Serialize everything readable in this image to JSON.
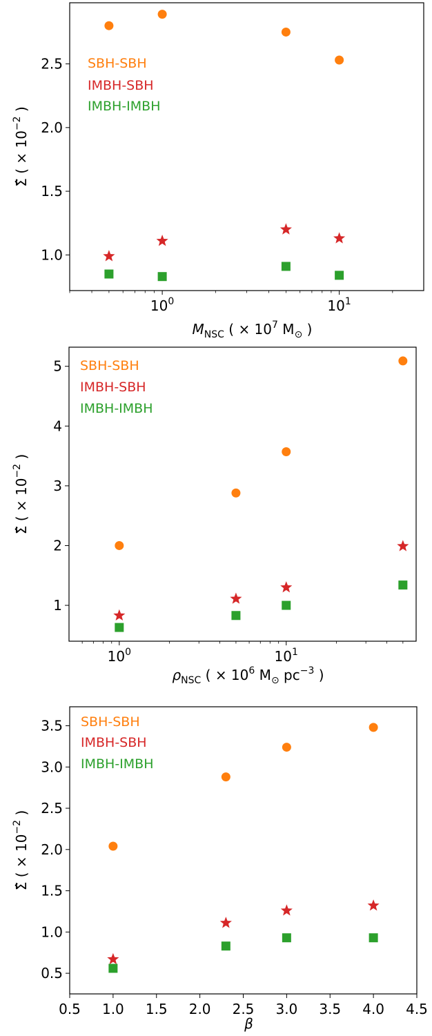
{
  "chart_data": [
    {
      "type": "scatter",
      "xscale": "log",
      "xlim": [
        0.3,
        30
      ],
      "ylim": [
        0.72,
        2.98
      ],
      "xlabel": "M_NSC ( × 10^7 M_⊙ )",
      "ylabel": "Σ̂ ( × 10^−2 )",
      "xticks": [
        {
          "v": 1,
          "base": "10",
          "exp": "0"
        },
        {
          "v": 10,
          "base": "10",
          "exp": "1"
        }
      ],
      "yticks": [
        {
          "v": 1.0,
          "label": "1.0"
        },
        {
          "v": 1.5,
          "label": "1.5"
        },
        {
          "v": 2.0,
          "label": "2.0"
        },
        {
          "v": 2.5,
          "label": "2.5"
        }
      ],
      "legend_position": "upper-left",
      "series": [
        {
          "name": "SBH-SBH",
          "marker": "circle",
          "color": "#ff7f0e",
          "x": [
            0.5,
            1,
            5,
            10
          ],
          "y": [
            2.8,
            2.89,
            2.75,
            2.53
          ]
        },
        {
          "name": "IMBH-SBH",
          "marker": "star",
          "color": "#d62728",
          "x": [
            0.5,
            1,
            5,
            10
          ],
          "y": [
            0.99,
            1.11,
            1.2,
            1.13
          ]
        },
        {
          "name": "IMBH-IMBH",
          "marker": "square",
          "color": "#2ca02c",
          "x": [
            0.5,
            1,
            5,
            10
          ],
          "y": [
            0.85,
            0.83,
            0.91,
            0.84
          ]
        }
      ]
    },
    {
      "type": "scatter",
      "xscale": "log",
      "xlim": [
        0.5,
        60
      ],
      "ylim": [
        0.4,
        5.32
      ],
      "xlabel": "ρ_NSC ( × 10^6 M_⊙ pc^−3 )",
      "ylabel": "Σ̂ ( × 10^−2 )",
      "xticks": [
        {
          "v": 1,
          "base": "10",
          "exp": "0"
        },
        {
          "v": 10,
          "base": "10",
          "exp": "1"
        }
      ],
      "yticks": [
        {
          "v": 1,
          "label": "1"
        },
        {
          "v": 2,
          "label": "2"
        },
        {
          "v": 3,
          "label": "3"
        },
        {
          "v": 4,
          "label": "4"
        },
        {
          "v": 5,
          "label": "5"
        }
      ],
      "legend_position": "upper-left",
      "series": [
        {
          "name": "SBH-SBH",
          "marker": "circle",
          "color": "#ff7f0e",
          "x": [
            1,
            5,
            10,
            50
          ],
          "y": [
            2.0,
            2.88,
            3.57,
            5.09
          ]
        },
        {
          "name": "IMBH-SBH",
          "marker": "star",
          "color": "#d62728",
          "x": [
            1,
            5,
            10,
            50
          ],
          "y": [
            0.83,
            1.11,
            1.3,
            1.99
          ]
        },
        {
          "name": "IMBH-IMBH",
          "marker": "square",
          "color": "#2ca02c",
          "x": [
            1,
            5,
            10,
            50
          ],
          "y": [
            0.63,
            0.83,
            1.0,
            1.34
          ]
        }
      ]
    },
    {
      "type": "scatter",
      "xscale": "linear",
      "xlim": [
        0.5,
        4.5
      ],
      "ylim": [
        0.25,
        3.73
      ],
      "xlabel": "β",
      "ylabel": "Σ̂ ( × 10^−2 )",
      "xticks": [
        {
          "v": 0.5,
          "label": "0.5"
        },
        {
          "v": 1.0,
          "label": "1.0"
        },
        {
          "v": 1.5,
          "label": "1.5"
        },
        {
          "v": 2.0,
          "label": "2.0"
        },
        {
          "v": 2.5,
          "label": "2.5"
        },
        {
          "v": 3.0,
          "label": "3.0"
        },
        {
          "v": 3.5,
          "label": "3.5"
        },
        {
          "v": 4.0,
          "label": "4.0"
        },
        {
          "v": 4.5,
          "label": "4.5"
        }
      ],
      "yticks": [
        {
          "v": 0.5,
          "label": "0.5"
        },
        {
          "v": 1.0,
          "label": "1.0"
        },
        {
          "v": 1.5,
          "label": "1.5"
        },
        {
          "v": 2.0,
          "label": "2.0"
        },
        {
          "v": 2.5,
          "label": "2.5"
        },
        {
          "v": 3.0,
          "label": "3.0"
        },
        {
          "v": 3.5,
          "label": "3.5"
        }
      ],
      "legend_position": "upper-left",
      "series": [
        {
          "name": "SBH-SBH",
          "marker": "circle",
          "color": "#ff7f0e",
          "x": [
            1.0,
            2.3,
            3.0,
            4.0
          ],
          "y": [
            2.04,
            2.88,
            3.24,
            3.48
          ]
        },
        {
          "name": "IMBH-SBH",
          "marker": "star",
          "color": "#d62728",
          "x": [
            1.0,
            2.3,
            3.0,
            4.0
          ],
          "y": [
            0.67,
            1.11,
            1.26,
            1.32
          ]
        },
        {
          "name": "IMBH-IMBH",
          "marker": "square",
          "color": "#2ca02c",
          "x": [
            1.0,
            2.3,
            3.0,
            4.0
          ],
          "y": [
            0.56,
            0.83,
            0.93,
            0.93
          ]
        }
      ]
    }
  ],
  "axis_labels": {
    "panel1_x": {
      "symbol": "M",
      "sub": "NSC",
      "pre": " ( × 10",
      "exp": "7",
      "post": " M",
      "sun": "⊙",
      "close": " )"
    },
    "panel2_x": {
      "symbol": "ρ",
      "sub": "NSC",
      "pre": " ( × 10",
      "exp": "6",
      "post": " M",
      "sun": "⊙",
      "unit": " pc",
      "unit_exp": "−3",
      "close": " )"
    },
    "panel3_x": {
      "symbol": "β"
    },
    "y": {
      "symbol": "Σ̂",
      "pre": " ( × 10",
      "exp": "−2",
      "close": " )"
    }
  }
}
